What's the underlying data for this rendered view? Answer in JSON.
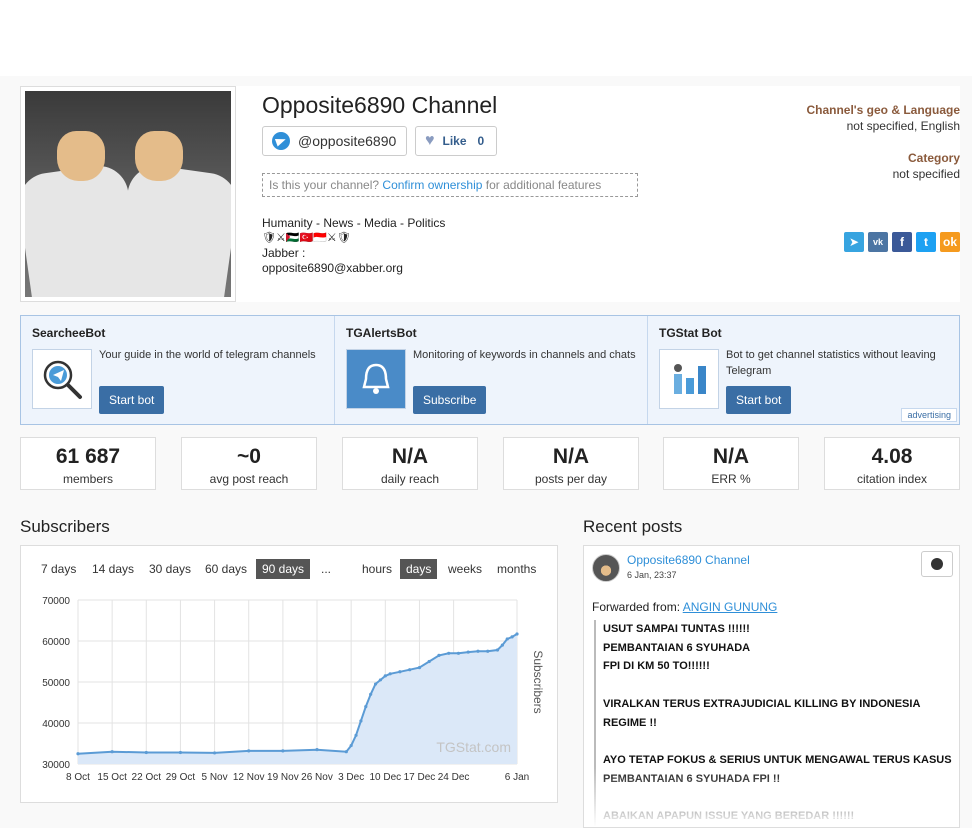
{
  "channel": {
    "title": "Opposite6890 Channel",
    "handle": "@opposite6890",
    "like_label": "Like",
    "like_count": "0",
    "ownership_prefix": "Is this your channel?",
    "ownership_link": "Confirm ownership",
    "ownership_suffix": "for additional features",
    "description_line1": "Humanity - News - Media - Politics",
    "description_flags": "🛡⚔🇵🇸🇹🇷🇮🇩⚔🛡",
    "description_line3": "Jabber :",
    "description_line4": "opposite6890@xabber.org",
    "geo_label": "Channel's geo & Language",
    "geo_value": "not specified, English",
    "category_label": "Category",
    "category_value": "not specified",
    "share_icons": [
      "telegram-share-icon",
      "vk-share-icon",
      "facebook-share-icon",
      "twitter-share-icon",
      "ok-share-icon"
    ],
    "share_colors": [
      "#37a4e0",
      "#4c75a3",
      "#3b5998",
      "#1da1f2",
      "#f59a1e"
    ]
  },
  "bots": [
    {
      "title": "SearcheeBot",
      "text": "Your guide in the world of telegram channels",
      "button": "Start bot"
    },
    {
      "title": "TGAlertsBot",
      "text": "Monitoring of keywords in channels and chats",
      "button": "Subscribe"
    },
    {
      "title": "TGStat Bot",
      "text": "Bot to get channel statistics without leaving Telegram",
      "button": "Start bot"
    }
  ],
  "advertising_label": "advertising",
  "stats": [
    {
      "value": "61 687",
      "label": "members"
    },
    {
      "value": "~0",
      "label": "avg post reach"
    },
    {
      "value": "N/A",
      "label": "daily reach"
    },
    {
      "value": "N/A",
      "label": "posts per day"
    },
    {
      "value": "N/A",
      "label": "ERR %"
    },
    {
      "value": "4.08",
      "label": "citation index"
    }
  ],
  "subscribers_title": "Subscribers",
  "recent_posts_title": "Recent posts",
  "chart_controls": {
    "ranges": [
      "7 days",
      "14 days",
      "30 days",
      "60 days",
      "90 days",
      "..."
    ],
    "active_range": "90 days",
    "granularity": [
      "hours",
      "days",
      "weeks",
      "months"
    ],
    "active_granularity": "days"
  },
  "chart_data": {
    "type": "area",
    "title": "",
    "xlabel": "",
    "ylabel": "Subscribers",
    "watermark": "TGStat.com",
    "ylim": [
      30000,
      70000
    ],
    "yticks": [
      "30000",
      "40000",
      "50000",
      "60000",
      "70000"
    ],
    "xticks": [
      "8 Oct",
      "15 Oct",
      "22 Oct",
      "29 Oct",
      "5 Nov",
      "12 Nov",
      "19 Nov",
      "26 Nov",
      "3 Dec",
      "10 Dec",
      "17 Dec",
      "24 Dec",
      "6 Jan"
    ],
    "xtick_days": [
      0,
      7,
      14,
      21,
      28,
      35,
      42,
      49,
      56,
      63,
      70,
      77,
      90
    ],
    "x": [
      0,
      7,
      14,
      21,
      28,
      35,
      42,
      49,
      55,
      56,
      57,
      58,
      59,
      60,
      61,
      62,
      63,
      64,
      66,
      68,
      70,
      72,
      74,
      76,
      78,
      80,
      82,
      84,
      86,
      87,
      88,
      89,
      90
    ],
    "y": [
      32500,
      33000,
      32800,
      32800,
      32700,
      33200,
      33200,
      33500,
      33000,
      34500,
      37000,
      40500,
      44000,
      47000,
      49500,
      50500,
      51500,
      52000,
      52500,
      53000,
      53500,
      55000,
      56500,
      57000,
      57000,
      57300,
      57500,
      57500,
      57800,
      59000,
      60500,
      61000,
      61700
    ],
    "grid": true,
    "fill_color": "#dbe8f8",
    "line_color": "#5b9bd5"
  },
  "post": {
    "channel": "Opposite6890 Channel",
    "date": "6 Jan, 23:37",
    "forwarded_label": "Forwarded from:",
    "forwarded_from": "ANGIN GUNUNG",
    "lines": [
      "USUT SAMPAI TUNTAS !!!!!!",
      "PEMBANTAIAN 6 SYUHADA",
      "FPI DI KM 50 TO!!!!!!",
      "",
      "VIRALKAN TERUS EXTRAJUDICIAL KILLING BY INDONESIA REGIME !!",
      "",
      "AYO TETAP FOKUS & SERIUS UNTUK MENGAWAL TERUS KASUS PEMBANTAIAN 6 SYUHADA FPI !!",
      "",
      "ABAIKAN APAPUN ISSUE YANG BEREDAR !!!!!!"
    ]
  }
}
